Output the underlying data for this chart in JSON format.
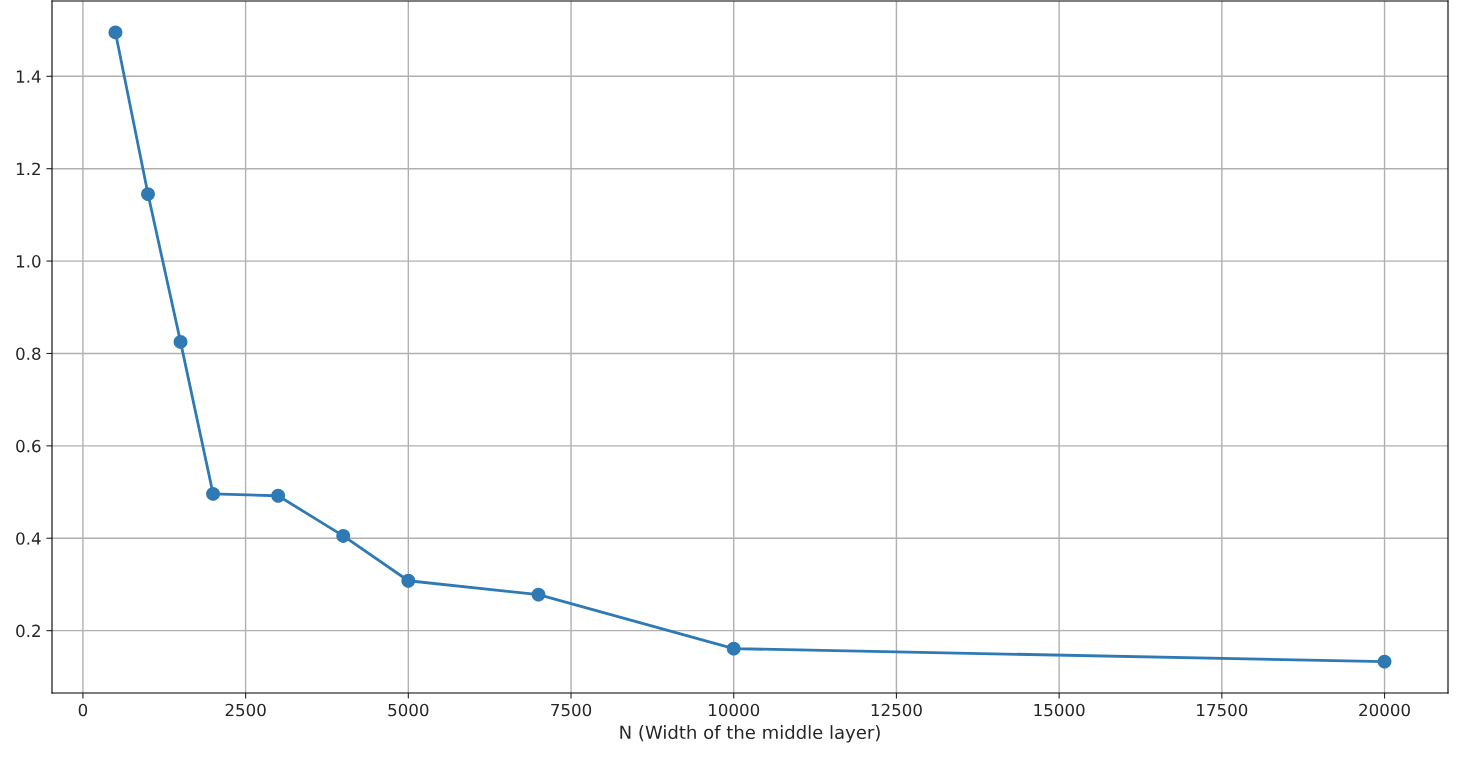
{
  "chart_data": {
    "type": "line",
    "xlabel": "N (Width of the middle layer)",
    "x": [
      500,
      1000,
      1500,
      2000,
      3000,
      4000,
      5000,
      7000,
      10000,
      20000
    ],
    "series": [
      {
        "color": "#2f7ab5",
        "values": [
          1.495,
          1.145,
          0.825,
          0.496,
          0.492,
          0.405,
          0.308,
          0.278,
          0.161,
          0.133
        ]
      }
    ],
    "xlim": [
      -475,
      20975
    ],
    "ylim": [
      0.065,
      1.563
    ],
    "xticks": [
      0,
      2500,
      5000,
      7500,
      10000,
      12500,
      15000,
      17500,
      20000
    ],
    "yticks": [
      {
        "value": 0.2,
        "label": "0.2"
      },
      {
        "value": 0.4,
        "label": "0.4"
      },
      {
        "value": 0.6,
        "label": "0.6"
      },
      {
        "value": 0.8,
        "label": "0.8"
      },
      {
        "value": 1.0,
        "label": "1.0"
      },
      {
        "value": 1.2,
        "label": "1.2"
      },
      {
        "value": 1.4,
        "label": "1.4"
      }
    ],
    "grid": true,
    "marker": "circle",
    "line_style": "solid"
  }
}
